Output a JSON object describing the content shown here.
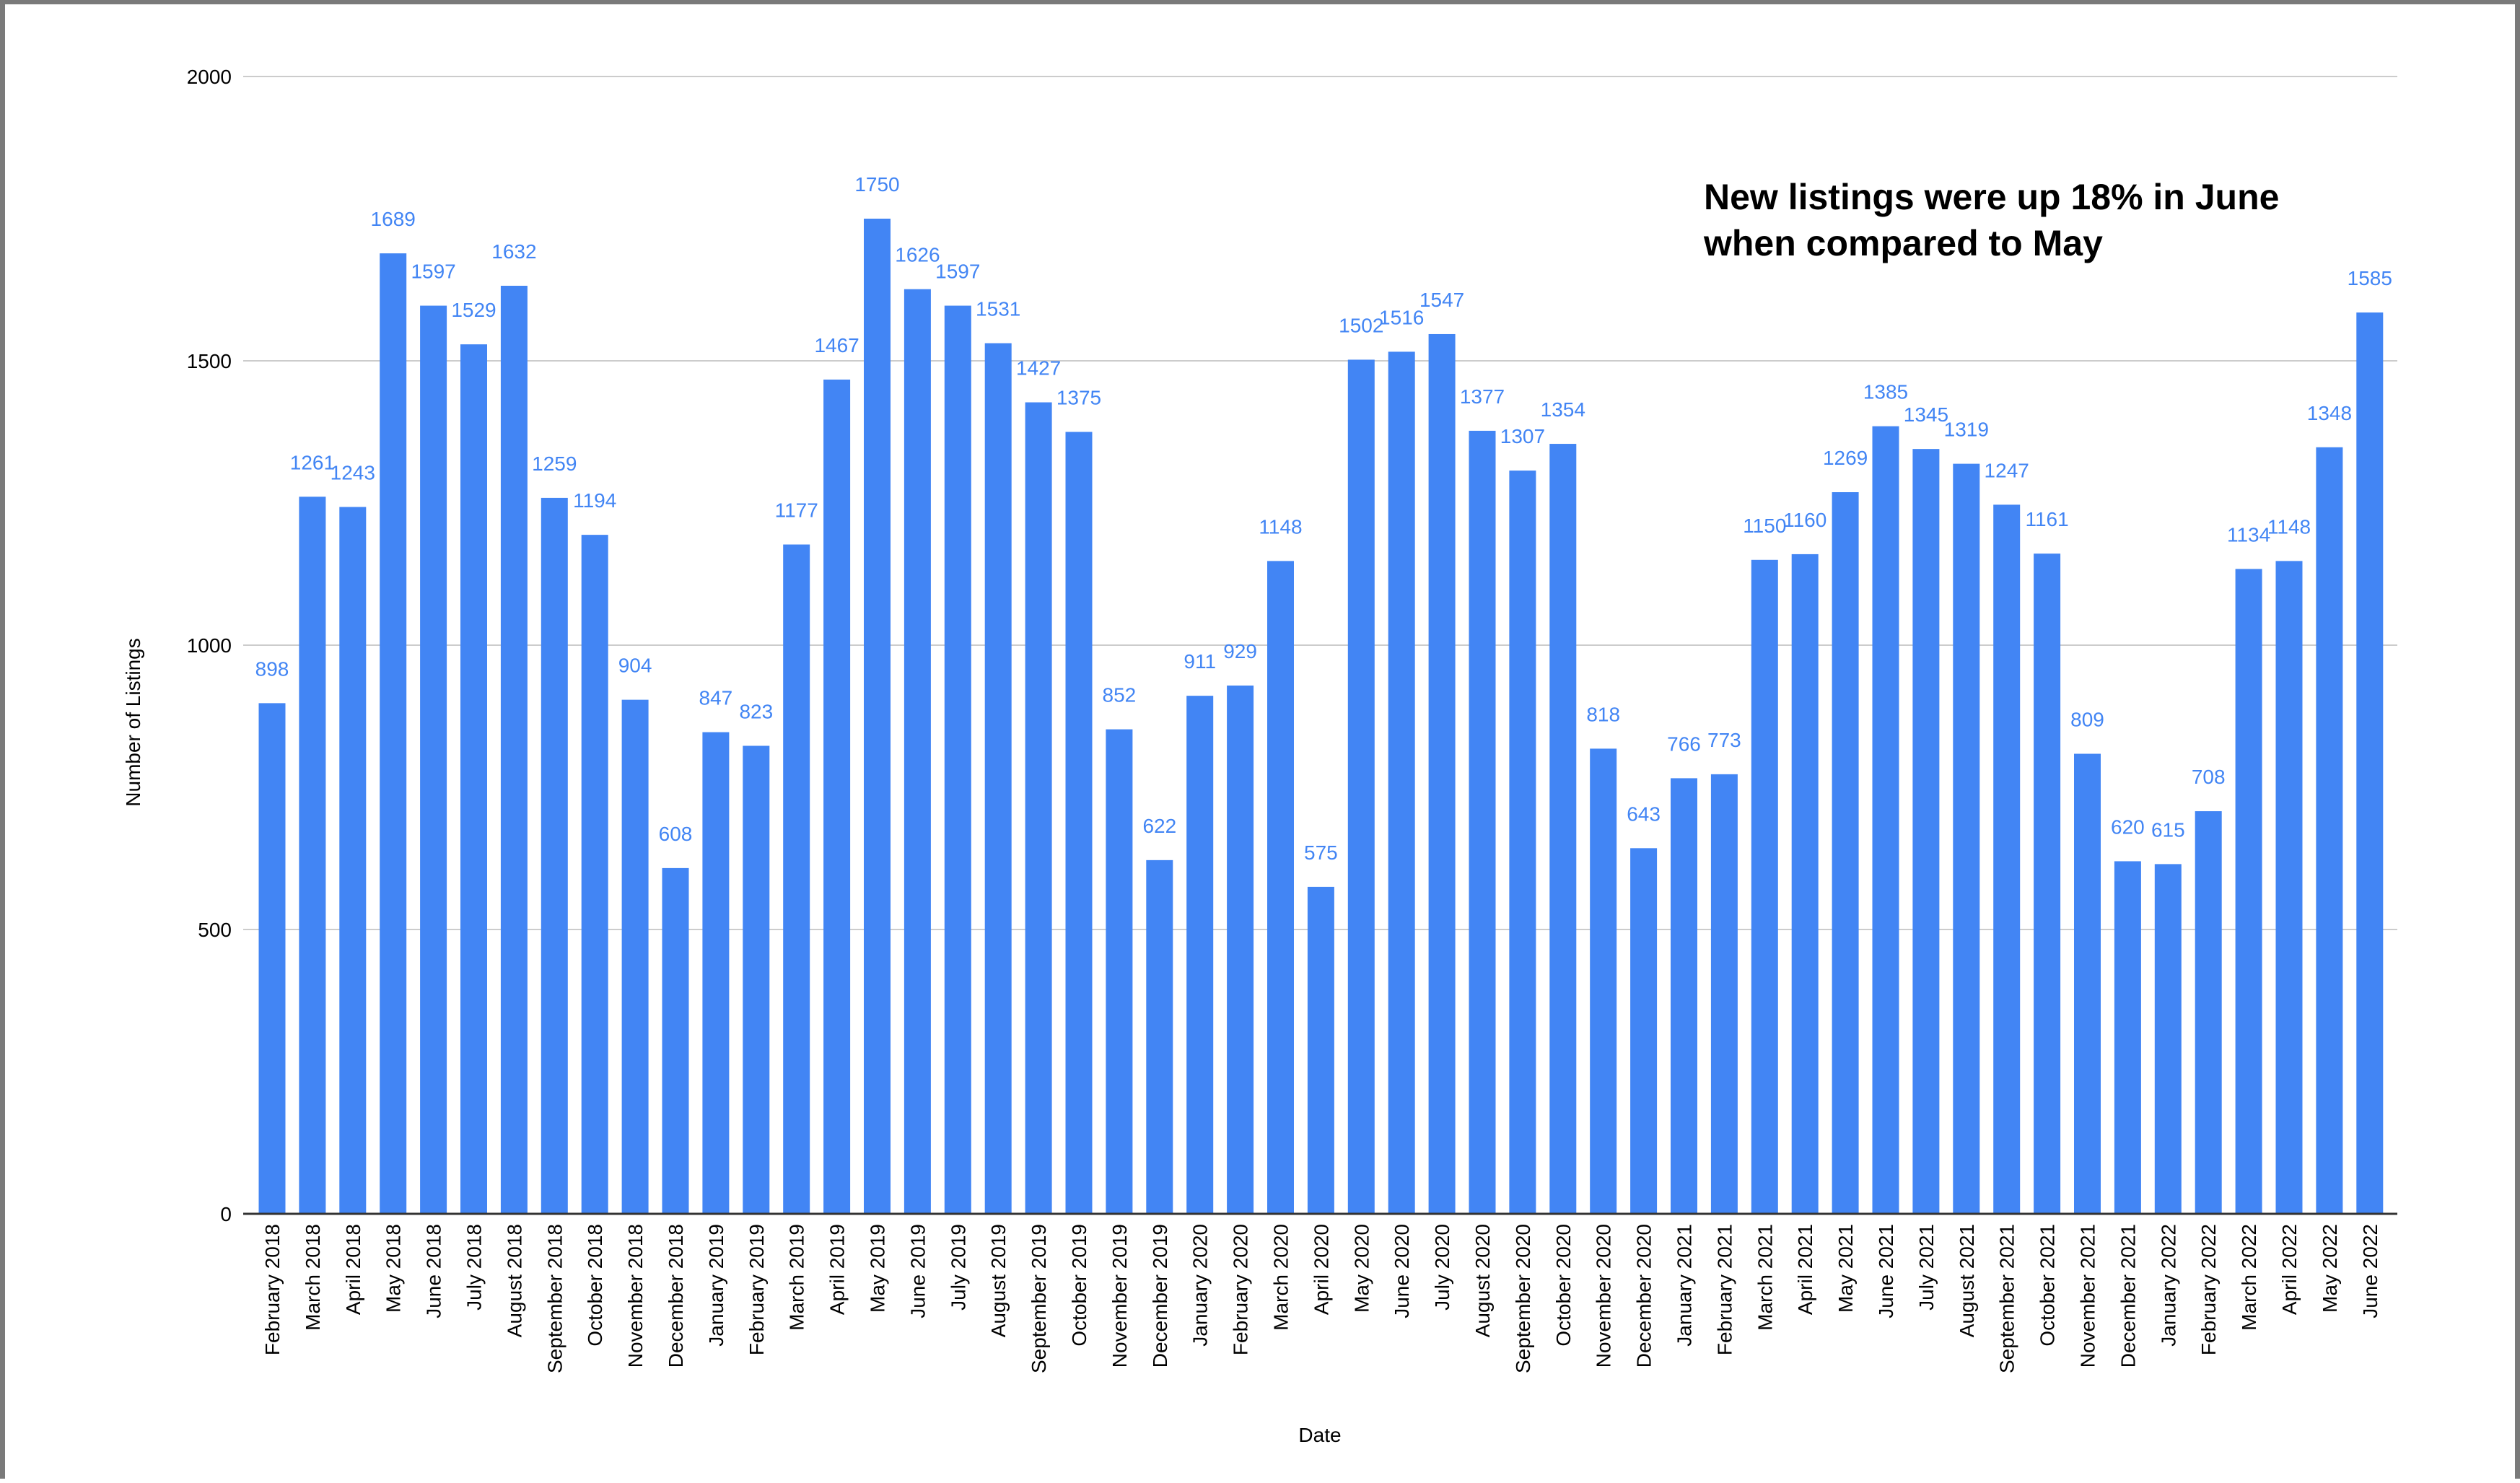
{
  "colors": {
    "bar": "#4285f4",
    "data_label": "#4285f4",
    "grid": "#cccccc",
    "axis": "#333333",
    "frame": "#7a7a7a"
  },
  "chart_data": {
    "type": "bar",
    "title": "",
    "xlabel": "Date",
    "ylabel": "Number of Listings",
    "ylim": [
      0,
      2000
    ],
    "yticks": [
      0,
      500,
      1000,
      1500,
      2000
    ],
    "grid": true,
    "legend": "none",
    "annotation": [
      "New listings were up 18% in June",
      "when compared to May"
    ],
    "categories": [
      "February 2018",
      "March 2018",
      "April 2018",
      "May 2018",
      "June 2018",
      "July 2018",
      "August 2018",
      "September 2018",
      "October 2018",
      "November 2018",
      "December 2018",
      "January 2019",
      "February 2019",
      "March 2019",
      "April 2019",
      "May 2019",
      "June 2019",
      "July 2019",
      "August 2019",
      "September 2019",
      "October 2019",
      "November 2019",
      "December 2019",
      "January 2020",
      "February 2020",
      "March 2020",
      "April 2020",
      "May 2020",
      "June 2020",
      "July 2020",
      "August 2020",
      "September 2020",
      "October 2020",
      "November 2020",
      "December 2020",
      "January 2021",
      "February 2021",
      "March 2021",
      "April 2021",
      "May 2021",
      "June 2021",
      "July 2021",
      "August 2021",
      "September 2021",
      "October 2021",
      "November 2021",
      "December 2021",
      "January 2022",
      "February 2022",
      "March 2022",
      "April 2022",
      "May 2022",
      "June 2022"
    ],
    "values": [
      898,
      1261,
      1243,
      1689,
      1597,
      1529,
      1632,
      1259,
      1194,
      904,
      608,
      847,
      823,
      1177,
      1467,
      1750,
      1626,
      1597,
      1531,
      1427,
      1375,
      852,
      622,
      911,
      929,
      1148,
      575,
      1502,
      1516,
      1547,
      1377,
      1307,
      1354,
      818,
      643,
      766,
      773,
      1150,
      1160,
      1269,
      1385,
      1345,
      1319,
      1247,
      1161,
      809,
      620,
      615,
      708,
      1134,
      1148,
      1348,
      1585
    ]
  }
}
